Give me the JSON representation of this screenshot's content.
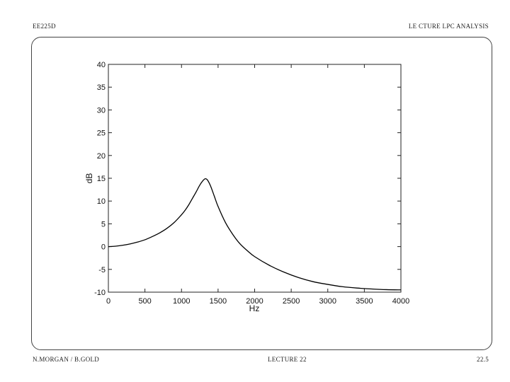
{
  "page": {
    "header_left": "EE225D",
    "header_right": "LE  CTURE LPC ANALYSIS",
    "footer_left": "N.MORGAN / B.GOLD",
    "footer_center": "LECTURE  22",
    "footer_right": "22.5"
  },
  "chart_data": {
    "type": "line",
    "title": "",
    "xlabel": "Hz",
    "ylabel": "dB",
    "xlim": [
      0,
      4000
    ],
    "ylim": [
      -10,
      40
    ],
    "xticks": [
      0,
      500,
      1000,
      1500,
      2000,
      2500,
      3000,
      3500,
      4000
    ],
    "yticks": [
      -10,
      -5,
      0,
      5,
      10,
      15,
      20,
      25,
      30,
      35,
      40
    ],
    "grid": false,
    "series": [
      {
        "color": "#000000",
        "x": [
          0,
          100,
          200,
          300,
          400,
          500,
          600,
          700,
          800,
          900,
          1000,
          1050,
          1100,
          1150,
          1200,
          1250,
          1300,
          1330,
          1360,
          1400,
          1450,
          1500,
          1600,
          1700,
          1800,
          1900,
          2000,
          2200,
          2400,
          2600,
          2800,
          3000,
          3200,
          3400,
          3600,
          3800,
          4000
        ],
        "y": [
          0,
          0.1,
          0.3,
          0.6,
          1.0,
          1.5,
          2.2,
          3.0,
          4.0,
          5.3,
          7.0,
          8.0,
          9.2,
          10.6,
          12.0,
          13.5,
          14.6,
          14.9,
          14.5,
          13.2,
          11.0,
          8.8,
          5.3,
          2.7,
          0.6,
          -0.9,
          -2.2,
          -4.1,
          -5.6,
          -6.8,
          -7.7,
          -8.3,
          -8.8,
          -9.1,
          -9.3,
          -9.45,
          -9.5
        ]
      }
    ]
  }
}
